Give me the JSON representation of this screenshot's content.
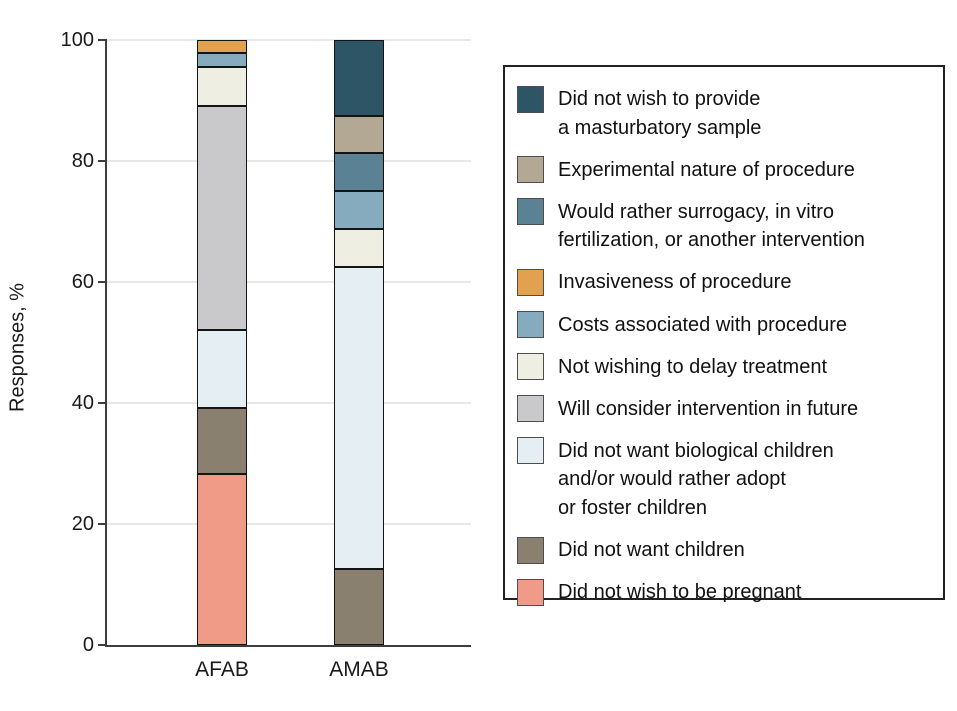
{
  "chart_data": {
    "type": "bar",
    "stacked": true,
    "percent_stacked": true,
    "title": "",
    "xlabel": "",
    "ylabel": "Responses, %",
    "ylim": [
      0,
      100
    ],
    "yticks": [
      0,
      20,
      40,
      60,
      80,
      100
    ],
    "grid": true,
    "legend_position": "right",
    "categories": [
      "AFAB",
      "AMAB"
    ],
    "series": [
      {
        "name": "Did not wish to be pregnant",
        "color": "#F09B88",
        "values": [
          28.3,
          0
        ],
        "legend_lines": [
          "Did not wish to be pregnant"
        ]
      },
      {
        "name": "Did not want children",
        "color": "#8A8070",
        "values": [
          10.9,
          12.5
        ],
        "legend_lines": [
          "Did not want children"
        ]
      },
      {
        "name": "Did not want biological children and/or would rather adopt or foster children",
        "color": "#E4EEF3",
        "values": [
          13.0,
          50.0
        ],
        "legend_lines": [
          "Did not want biological children",
          "and/or would rather adopt",
          "or foster children"
        ]
      },
      {
        "name": "Will consider intervention in future",
        "color": "#C9C9CC",
        "values": [
          37.0,
          0
        ],
        "legend_lines": [
          "Will consider intervention in future"
        ]
      },
      {
        "name": "Not wishing to delay treatment",
        "color": "#EFEEE2",
        "values": [
          6.5,
          6.25
        ],
        "legend_lines": [
          "Not wishing to delay treatment"
        ]
      },
      {
        "name": "Costs associated with procedure",
        "color": "#87ABBE",
        "values": [
          2.2,
          6.25
        ],
        "legend_lines": [
          "Costs associated with procedure"
        ]
      },
      {
        "name": "Invasiveness of procedure",
        "color": "#E2A14F",
        "values": [
          2.2,
          0
        ],
        "legend_lines": [
          "Invasiveness of procedure"
        ]
      },
      {
        "name": "Would rather surrogacy, in vitro fertilization, or another intervention",
        "color": "#5B8194",
        "values": [
          0,
          6.25
        ],
        "legend_lines": [
          "Would rather surrogacy, in vitro",
          "fertilization, or another intervention"
        ]
      },
      {
        "name": "Experimental nature of procedure",
        "color": "#B3A894",
        "values": [
          0,
          6.25
        ],
        "legend_lines": [
          "Experimental nature of procedure"
        ]
      },
      {
        "name": "Did not wish to provide a masturbatory sample",
        "color": "#2E5565",
        "values": [
          0,
          12.5
        ],
        "legend_lines": [
          "Did not wish to provide",
          "a masturbatory sample"
        ]
      }
    ]
  }
}
